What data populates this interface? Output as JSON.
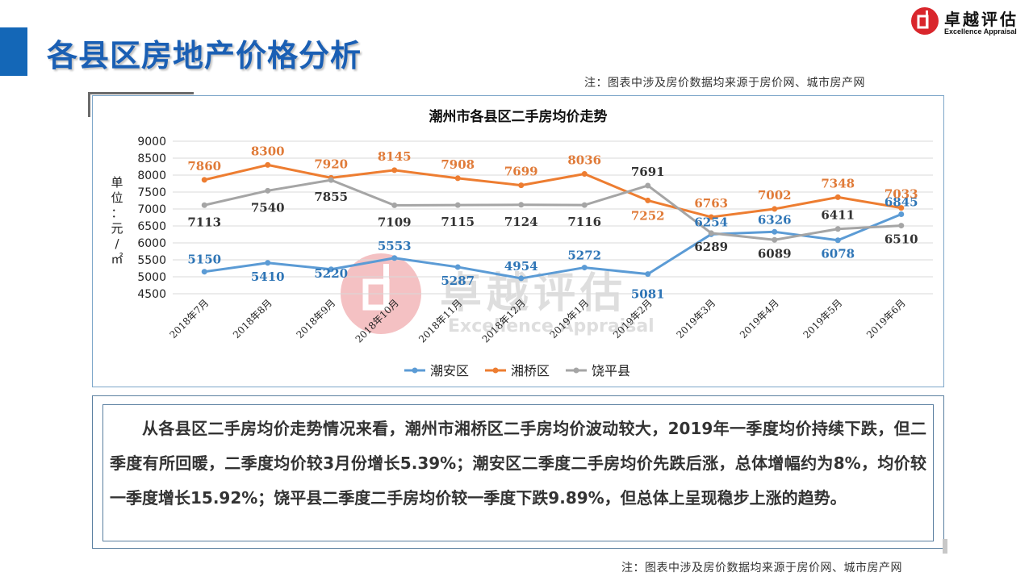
{
  "header": {
    "title": "各县区房地产价格分析",
    "logo_cn": "卓越评估",
    "logo_en": "Excellence Appraisal"
  },
  "notes": {
    "top": "注：图表中涉及房价数据均来源于房价网、城市房产网",
    "bottom": "注：图表中涉及房价数据均来源于房价网、城市房产网"
  },
  "watermark": {
    "cn": "卓越评估",
    "en": "Excellence Appraisal"
  },
  "chart_data": {
    "type": "line",
    "title": "潮州市各县区二手房均价走势",
    "ylabel": "单位：元/㎡",
    "ylim": [
      4500,
      9000
    ],
    "yticks": [
      4500,
      5000,
      5500,
      6000,
      6500,
      7000,
      7500,
      8000,
      8500,
      9000
    ],
    "categories": [
      "2018年7月",
      "2018年8月",
      "2018年9月",
      "2018年10月",
      "2018年11月",
      "2018年12月",
      "2019年1月",
      "2019年2月",
      "2019年3月",
      "2019年4月",
      "2019年5月",
      "2019年6月"
    ],
    "grid": true,
    "legend_position": "bottom",
    "series": [
      {
        "name": "潮安区",
        "color": "#5b9bd5",
        "label_color": "#2e75b6",
        "values": [
          5150,
          5410,
          5220,
          5553,
          5287,
          4954,
          5272,
          5081,
          6254,
          6326,
          6078,
          6845
        ]
      },
      {
        "name": "湘桥区",
        "color": "#ed7d31",
        "label_color": "#e07b39",
        "values": [
          7860,
          8300,
          7920,
          8145,
          7908,
          7699,
          8036,
          7252,
          6763,
          7002,
          7348,
          7033
        ]
      },
      {
        "name": "饶平县",
        "color": "#a5a5a5",
        "label_color": "#333333",
        "values": [
          7113,
          7540,
          7855,
          7109,
          7115,
          7124,
          7116,
          7691,
          6289,
          6089,
          6411,
          6510
        ]
      }
    ]
  },
  "summary": {
    "text": "从各县区二手房均价走势情况来看，潮州市湘桥区二手房均价波动较大，2019年一季度均价持续下跌，但二季度有所回暖，二季度均价较3月份增长5.39%；潮安区二季度二手房均价先跌后涨，总体增幅约为8%，均价较一季度增长15.92%；饶平县二季度二手房均价较一季度下跌9.89%，但总体上呈现稳步上涨的趋势。"
  }
}
